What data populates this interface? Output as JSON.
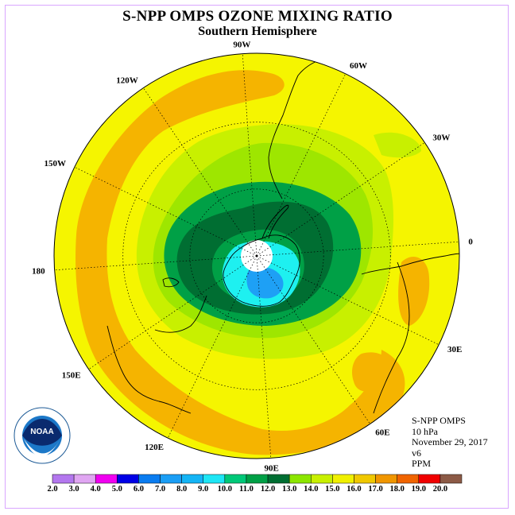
{
  "title": "S-NPP OMPS OZONE MIXING RATIO",
  "subtitle": "Southern Hemisphere",
  "info": {
    "product": "S-NPP OMPS",
    "level": "10 hPa",
    "date": "November 29, 2017",
    "version": "v6",
    "units": "PPM"
  },
  "longitude_labels": [
    {
      "text": "90W",
      "lon": -90
    },
    {
      "text": "60W",
      "lon": -60
    },
    {
      "text": "30W",
      "lon": -30
    },
    {
      "text": "0",
      "lon": 0
    },
    {
      "text": "30E",
      "lon": 30
    },
    {
      "text": "60E",
      "lon": 60
    },
    {
      "text": "90E",
      "lon": 90
    },
    {
      "text": "120E",
      "lon": 120
    },
    {
      "text": "150E",
      "lon": 150
    },
    {
      "text": "180",
      "lon": 180
    },
    {
      "text": "150W",
      "lon": -150
    },
    {
      "text": "120W",
      "lon": -120
    }
  ],
  "colorbar": {
    "ticks": [
      "2.0",
      "3.0",
      "4.0",
      "5.0",
      "6.0",
      "7.0",
      "8.0",
      "9.0",
      "10.0",
      "11.0",
      "12.0",
      "13.0",
      "14.0",
      "15.0",
      "16.0",
      "17.0",
      "18.0",
      "19.0",
      "20.0"
    ],
    "colors": [
      "#b377ee",
      "#e0a6f2",
      "#f000f0",
      "#0000e6",
      "#0a7cf0",
      "#1a9ef5",
      "#14b4f5",
      "#1ee6f5",
      "#00c878",
      "#00a046",
      "#006e32",
      "#8ce600",
      "#c8f000",
      "#f0f000",
      "#f0c800",
      "#f09600",
      "#f06400",
      "#f00000",
      "#8c5a46"
    ]
  },
  "logo": {
    "text": "NOAA",
    "ring": "NATIONAL OCEANIC AND ATMOSPHERIC ADMINISTRATION · U.S. DEPARTMENT OF COMMERCE"
  },
  "colors": {
    "yellow": "#f5f500",
    "orange": "#f5b400",
    "lime_light": "#c8f000",
    "lime": "#9ee600",
    "green": "#00a046",
    "dark_green": "#006e32",
    "cyan": "#1ef0f0",
    "light_blue": "#1ea0f5"
  }
}
